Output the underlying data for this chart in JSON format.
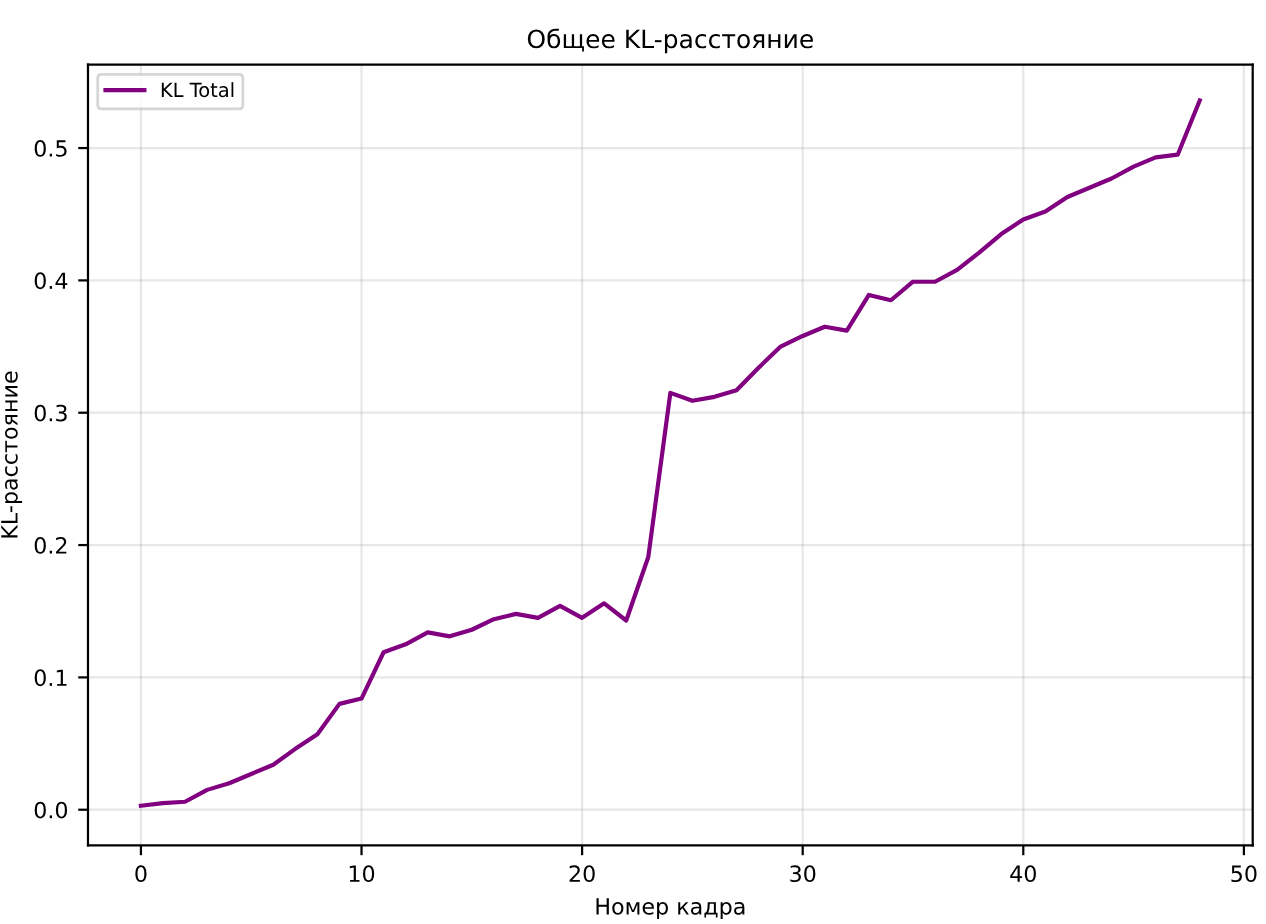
{
  "chart_data": {
    "type": "line",
    "title": "Общее KL-расстояние",
    "xlabel": "Номер кадра",
    "ylabel": "KL-расстояние",
    "x": [
      0,
      1,
      2,
      3,
      4,
      5,
      6,
      7,
      8,
      9,
      10,
      11,
      12,
      13,
      14,
      15,
      16,
      17,
      18,
      19,
      20,
      21,
      22,
      23,
      24,
      25,
      26,
      27,
      28,
      29,
      30,
      31,
      32,
      33,
      34,
      35,
      36,
      37,
      38,
      39,
      40,
      41,
      42,
      43,
      44,
      45,
      46,
      47,
      48
    ],
    "series": [
      {
        "name": "KL Total",
        "color": "#800080",
        "values": [
          0.003,
          0.005,
          0.006,
          0.015,
          0.02,
          0.027,
          0.034,
          0.046,
          0.057,
          0.08,
          0.084,
          0.119,
          0.125,
          0.134,
          0.131,
          0.136,
          0.144,
          0.148,
          0.145,
          0.154,
          0.145,
          0.156,
          0.143,
          0.191,
          0.315,
          0.309,
          0.312,
          0.317,
          0.334,
          0.35,
          0.358,
          0.365,
          0.362,
          0.389,
          0.385,
          0.399,
          0.399,
          0.408,
          0.421,
          0.435,
          0.446,
          0.452,
          0.463,
          0.47,
          0.477,
          0.486,
          0.493,
          0.495,
          0.536
        ]
      }
    ],
    "xlim": [
      -2.4,
      50.4
    ],
    "ylim": [
      -0.027,
      0.563
    ],
    "xticks": [
      0,
      10,
      20,
      30,
      40,
      50
    ],
    "yticks": [
      {
        "value": 0,
        "label": "0.0"
      },
      0.1,
      0.2,
      0.3,
      0.4,
      0.5
    ],
    "grid": true,
    "legend": "top left",
    "line_style": "solid",
    "marker": "none"
  }
}
